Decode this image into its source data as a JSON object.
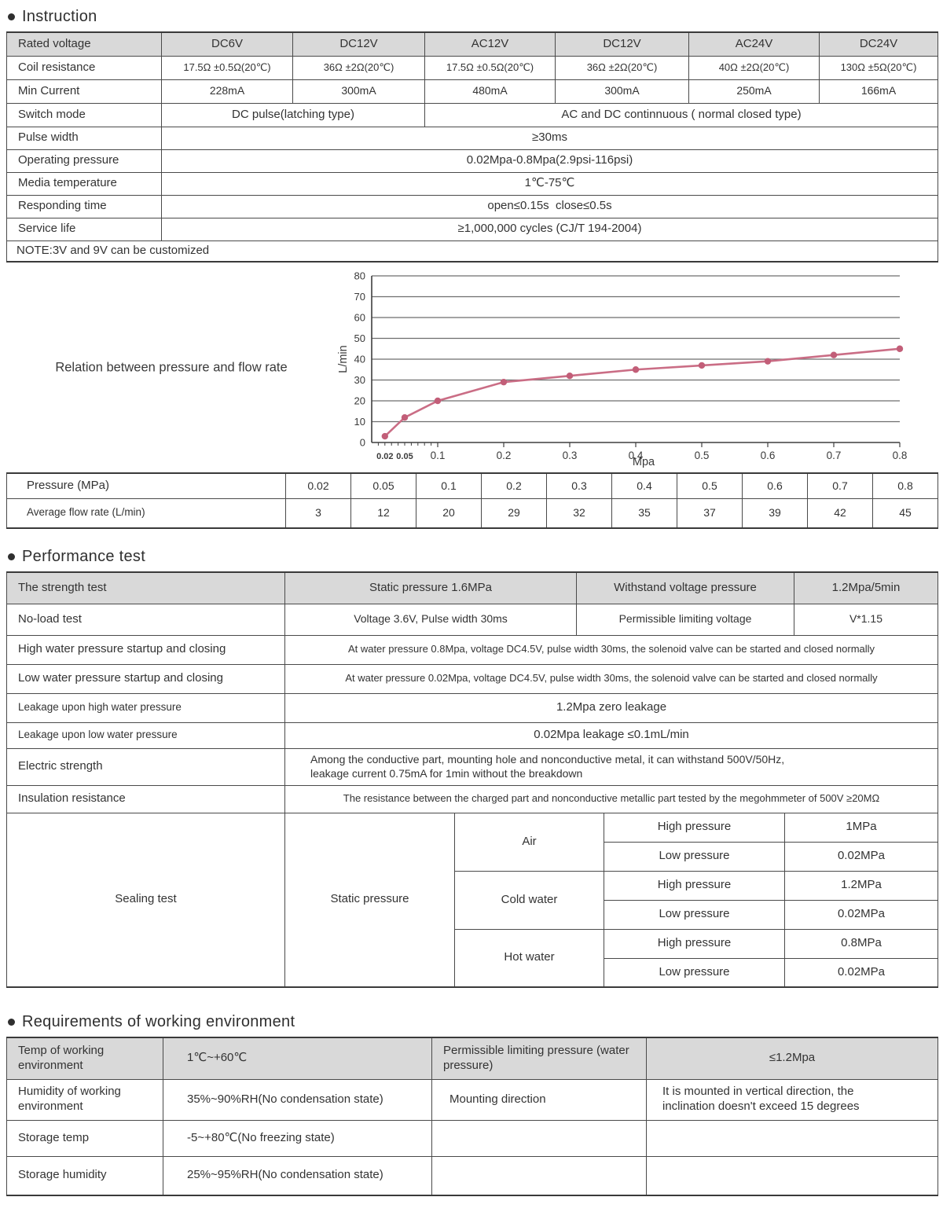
{
  "sections": {
    "instruction": "Instruction",
    "performance": "Performance test",
    "requirements": "Requirements of working environment"
  },
  "instruction_table": {
    "rated_voltage": {
      "label": "Rated voltage",
      "values": [
        "DC6V",
        "DC12V",
        "AC12V",
        "DC12V",
        "AC24V",
        "DC24V"
      ]
    },
    "coil_resistance": {
      "label": "Coil resistance",
      "values": [
        "17.5Ω ±0.5Ω(20℃)",
        "36Ω ±2Ω(20℃)",
        "17.5Ω ±0.5Ω(20℃)",
        "36Ω ±2Ω(20℃)",
        "40Ω ±2Ω(20℃)",
        "130Ω ±5Ω(20℃)"
      ]
    },
    "min_current": {
      "label": "Min Current",
      "values": [
        "228mA",
        "300mA",
        "480mA",
        "300mA",
        "250mA",
        "166mA"
      ]
    },
    "switch_mode": {
      "label": "Switch mode",
      "dc_value": "DC pulse(latching type)",
      "ac_value": "AC and DC continnuous ( normal closed type)"
    },
    "pulse_width": {
      "label": "Pulse width",
      "value": "≥30ms"
    },
    "operating_pressure": {
      "label": "Operating pressure",
      "value": "0.02Mpa-0.8Mpa(2.9psi-116psi)"
    },
    "media_temperature": {
      "label": "Media temperature",
      "value": "1℃-75℃"
    },
    "responding_time": {
      "label": "Responding time",
      "value": "open≤0.15s  close≤0.5s"
    },
    "service_life": {
      "label": "Service life",
      "value": "≥1,000,000 cycles (CJ/T 194-2004)"
    },
    "note": "NOTE:3V and 9V can be customized"
  },
  "chart_data": {
    "type": "line",
    "title": "Relation between pressure and flow rate",
    "x": [
      0.02,
      0.05,
      0.1,
      0.2,
      0.3,
      0.4,
      0.5,
      0.6,
      0.7,
      0.8
    ],
    "y": [
      3,
      12,
      20,
      29,
      32,
      35,
      37,
      39,
      42,
      45
    ],
    "x_tick_labels": [
      "0.02",
      "0.05",
      "0.1",
      "0.2",
      "0.3",
      "0.4",
      "0.5",
      "0.6",
      "0.7",
      "0.8"
    ],
    "y_ticks": [
      0,
      10,
      20,
      30,
      40,
      50,
      60,
      70,
      80
    ],
    "xlabel": "Mpa",
    "ylabel": "L/min",
    "xlim": [
      0,
      0.8
    ],
    "ylim": [
      0,
      80
    ],
    "grid": "horizontal",
    "legend": "none",
    "line_color": "#ca6d85",
    "point_color": "#c25e78"
  },
  "flow_table": {
    "pressure_label": "Pressure (MPa)",
    "flow_label": "Average flow rate (L/min)",
    "pressures": [
      "0.02",
      "0.05",
      "0.1",
      "0.2",
      "0.3",
      "0.4",
      "0.5",
      "0.6",
      "0.7",
      "0.8"
    ],
    "flows": [
      "3",
      "12",
      "20",
      "29",
      "32",
      "35",
      "37",
      "39",
      "42",
      "45"
    ]
  },
  "performance_table": {
    "header": {
      "col1": "The strength test",
      "col2": "Static pressure 1.6MPa",
      "col3": "Withstand voltage pressure",
      "col4": "1.2Mpa/5min"
    },
    "no_load": {
      "label": "No-load test",
      "col2": "Voltage 3.6V, Pulse width 30ms",
      "col3": "Permissible limiting voltage",
      "col4": "V*1.15"
    },
    "high_water": {
      "label": "High water pressure startup and closing",
      "value": "At water pressure 0.8Mpa, voltage DC4.5V, pulse width 30ms, the solenoid valve can be started and closed normally"
    },
    "low_water": {
      "label": "Low water pressure startup and closing",
      "value": "At water pressure 0.02Mpa, voltage DC4.5V, pulse width 30ms, the solenoid valve can be started and closed normally"
    },
    "leakage_high": {
      "label": "Leakage upon high water pressure",
      "value": "1.2Mpa zero leakage"
    },
    "leakage_low": {
      "label": "Leakage upon low water pressure",
      "value": "0.02Mpa leakage ≤0.1mL/min"
    },
    "electric_strength": {
      "label": "Electric strength",
      "value": "Among the conductive part, mounting hole and nonconductive metal, it can withstand 500V/50Hz, leakage current 0.75mA for 1min without the breakdown"
    },
    "insulation_resistance": {
      "label": "Insulation resistance",
      "value": "The resistance between the charged part and nonconductive metallic part tested by the megohmmeter of 500V ≥20MΩ"
    },
    "sealing": {
      "label": "Sealing test",
      "method": "Static pressure",
      "media": [
        {
          "name": "Air",
          "high_label": "High pressure",
          "high_value": "1MPa",
          "low_label": "Low pressure",
          "low_value": "0.02MPa"
        },
        {
          "name": "Cold water",
          "high_label": "High pressure",
          "high_value": "1.2MPa",
          "low_label": "Low pressure",
          "low_value": "0.02MPa"
        },
        {
          "name": "Hot water",
          "high_label": "High pressure",
          "high_value": "0.8MPa",
          "low_label": "Low pressure",
          "low_value": "0.02MPa"
        }
      ]
    }
  },
  "requirements_table": {
    "rows": [
      {
        "c1": "Temp of working environment",
        "c2": "1℃~+60℃",
        "c3": "Permissible limiting pressure (water pressure)",
        "c4": "≤1.2Mpa"
      },
      {
        "c1": "Humidity of working environment",
        "c2": "35%~90%RH(No condensation state)",
        "c3": "Mounting direction",
        "c4": "It is mounted in vertical direction, the inclination doesn't exceed 15 degrees"
      },
      {
        "c1": "Storage temp",
        "c2": "-5~+80℃(No freezing state)",
        "c3": "",
        "c4": ""
      },
      {
        "c1": "Storage humidity",
        "c2": "25%~95%RH(No condensation state)",
        "c3": "",
        "c4": ""
      }
    ]
  }
}
